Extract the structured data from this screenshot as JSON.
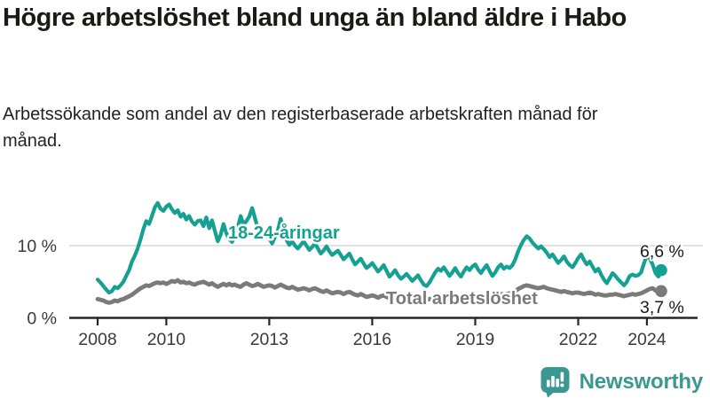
{
  "header": {
    "title": "Högre arbetslöshet bland unga än bland äldre i Habo",
    "subtitle": "Arbetssökande som andel av den registerbaserade arbetskraften månad för månad."
  },
  "footer": {
    "brand": "Newsworthy",
    "logo_icon": "speech-bubble-bar-chart-icon",
    "brand_color": "#3b9792"
  },
  "chart_data": {
    "type": "line",
    "title": "Högre arbetslöshet bland unga än bland äldre i Habo",
    "subtitle": "Arbetssökande som andel av den registerbaserade arbetskraften månad för månad.",
    "x_start": "2008-01",
    "x_end": "2024-06",
    "x_interval": "monthly",
    "x_ticks": [
      "2008",
      "2010",
      "2013",
      "2016",
      "2019",
      "2022",
      "2024"
    ],
    "y_ticks": [
      "0 %",
      "10 %"
    ],
    "ylim": [
      0,
      17.5
    ],
    "grid": "horizontal-10pct-only",
    "legend_position": "inline-labels",
    "axis_color": "#262626",
    "grid_color": "#d9d9d9",
    "series": [
      {
        "name": "18-24-åringar",
        "color": "#14a191",
        "end_label": "6,6 %",
        "end_value": 6.6,
        "values": [
          5.3,
          4.9,
          4.4,
          3.9,
          3.5,
          3.7,
          4.3,
          4.1,
          4.5,
          5.0,
          5.8,
          6.6,
          7.8,
          8.6,
          9.6,
          10.9,
          12.3,
          13.4,
          13.0,
          14.1,
          15.3,
          15.9,
          15.1,
          14.8,
          15.4,
          15.7,
          15.0,
          14.5,
          14.9,
          14.0,
          14.4,
          13.6,
          14.1,
          13.3,
          12.9,
          13.4,
          13.5,
          12.7,
          13.9,
          12.4,
          13.5,
          12.0,
          10.6,
          11.5,
          13.0,
          11.7,
          10.9,
          10.5,
          11.2,
          12.5,
          14.1,
          12.9,
          13.4,
          14.0,
          15.2,
          13.8,
          12.4,
          11.6,
          12.0,
          11.4,
          11.0,
          10.3,
          11.2,
          12.1,
          13.7,
          12.2,
          10.8,
          10.1,
          10.6,
          10.0,
          9.6,
          10.1,
          10.6,
          10.0,
          9.4,
          9.8,
          10.3,
          9.6,
          8.9,
          9.3,
          9.9,
          9.2,
          8.7,
          9.0,
          9.3,
          8.7,
          8.1,
          8.5,
          8.9,
          8.1,
          7.4,
          7.8,
          8.2,
          7.5,
          6.9,
          7.2,
          7.6,
          7.0,
          6.4,
          6.8,
          7.3,
          6.5,
          5.7,
          6.1,
          6.6,
          5.9,
          5.4,
          5.7,
          6.1,
          5.6,
          5.1,
          5.5,
          5.9,
          5.2,
          4.6,
          4.4,
          4.9,
          5.6,
          6.3,
          6.8,
          6.5,
          7.0,
          6.4,
          5.8,
          6.3,
          6.9,
          6.2,
          5.7,
          6.4,
          7.0,
          6.6,
          7.1,
          7.4,
          6.7,
          6.2,
          6.8,
          7.3,
          6.5,
          5.8,
          6.3,
          7.0,
          7.4,
          6.8,
          7.1,
          6.9,
          7.3,
          8.1,
          9.2,
          10.1,
          10.8,
          11.3,
          11.0,
          10.4,
          10.0,
          9.6,
          9.9,
          9.5,
          9.0,
          8.4,
          8.8,
          8.2,
          7.6,
          8.0,
          8.5,
          7.8,
          7.3,
          7.0,
          7.6,
          8.3,
          8.8,
          8.0,
          7.4,
          7.8,
          7.1,
          6.4,
          6.8,
          6.0,
          5.3,
          4.8,
          5.5,
          6.2,
          5.8,
          5.3,
          4.9,
          4.5,
          5.0,
          5.8,
          6.0,
          5.8,
          5.9,
          6.3,
          7.6,
          8.6,
          8.2,
          7.4,
          6.2,
          5.7,
          6.6
        ]
      },
      {
        "name": "Total arbetslöshet",
        "color": "#7a7a7a",
        "end_label": "3,7 %",
        "end_value": 3.7,
        "values": [
          2.6,
          2.5,
          2.4,
          2.2,
          2.1,
          2.2,
          2.4,
          2.3,
          2.5,
          2.6,
          2.8,
          3.0,
          3.2,
          3.5,
          3.8,
          4.1,
          4.3,
          4.5,
          4.4,
          4.6,
          4.8,
          4.9,
          4.8,
          4.9,
          4.7,
          4.9,
          5.1,
          5.0,
          5.2,
          4.9,
          5.0,
          4.8,
          4.9,
          4.7,
          4.6,
          4.8,
          4.9,
          5.0,
          4.8,
          4.6,
          4.8,
          4.5,
          4.3,
          4.5,
          4.7,
          4.5,
          4.7,
          4.5,
          4.6,
          4.4,
          4.3,
          4.6,
          4.8,
          4.6,
          4.4,
          4.5,
          4.7,
          4.5,
          4.3,
          4.4,
          4.5,
          4.4,
          4.2,
          4.4,
          4.6,
          4.4,
          4.2,
          4.1,
          4.3,
          4.1,
          3.9,
          4.0,
          4.1,
          4.0,
          3.8,
          4.0,
          4.1,
          3.9,
          3.7,
          3.6,
          3.8,
          3.6,
          3.4,
          3.5,
          3.6,
          3.5,
          3.3,
          3.5,
          3.6,
          3.4,
          3.2,
          3.1,
          3.3,
          3.1,
          2.9,
          3.0,
          3.1,
          3.0,
          2.8,
          3.0,
          3.1,
          2.9,
          2.7,
          2.6,
          2.8,
          2.7,
          2.6,
          2.7,
          2.8,
          2.7,
          2.6,
          2.7,
          2.8,
          2.7,
          2.5,
          2.5,
          2.6,
          2.7,
          2.6,
          2.7,
          2.8,
          2.9,
          2.7,
          2.6,
          2.7,
          2.8,
          2.7,
          2.6,
          2.8,
          2.9,
          2.8,
          2.9,
          3.0,
          3.1,
          3.0,
          3.1,
          3.2,
          3.1,
          3.0,
          3.1,
          3.2,
          3.3,
          3.2,
          3.3,
          3.4,
          3.5,
          3.7,
          4.0,
          4.2,
          4.4,
          4.5,
          4.4,
          4.3,
          4.2,
          4.1,
          4.2,
          4.3,
          4.1,
          4.0,
          3.9,
          3.8,
          3.7,
          3.6,
          3.7,
          3.6,
          3.5,
          3.4,
          3.5,
          3.5,
          3.4,
          3.3,
          3.4,
          3.5,
          3.4,
          3.2,
          3.3,
          3.2,
          3.1,
          3.1,
          3.2,
          3.2,
          3.3,
          3.2,
          3.1,
          3.0,
          3.1,
          3.2,
          3.3,
          3.2,
          3.3,
          3.4,
          3.6,
          3.8,
          4.0,
          4.1,
          3.8,
          3.6,
          3.7
        ]
      }
    ]
  }
}
